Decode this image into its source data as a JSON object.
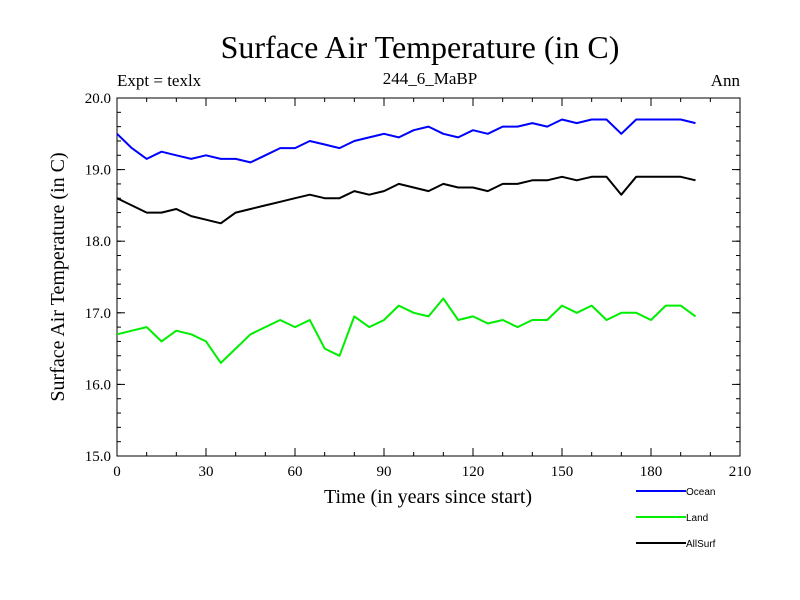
{
  "chart_data": {
    "type": "line",
    "title": "Surface Air Temperature (in C)",
    "subtitle": "244_6_MaBP",
    "top_left_label": "Expt = texlx",
    "top_right_label": "Ann",
    "xlabel": "Time (in years since start)",
    "ylabel": "Surface Air Temperature (in C)",
    "xlim": [
      0,
      210
    ],
    "ylim": [
      15.0,
      20.0
    ],
    "xticks": [
      0,
      30,
      60,
      90,
      120,
      150,
      180,
      210
    ],
    "yticks": [
      15.0,
      16.0,
      17.0,
      18.0,
      19.0,
      20.0
    ],
    "ytick_labels": [
      "15.0",
      "16.0",
      "17.0",
      "18.0",
      "19.0",
      "20.0"
    ],
    "x_start": 0,
    "x_step": 5,
    "legend_position": "bottom-right",
    "series": [
      {
        "name": "Ocean",
        "color": "#0000ff",
        "values": [
          19.5,
          19.3,
          19.15,
          19.25,
          19.2,
          19.15,
          19.2,
          19.15,
          19.15,
          19.1,
          19.2,
          19.3,
          19.3,
          19.4,
          19.35,
          19.3,
          19.4,
          19.45,
          19.5,
          19.45,
          19.55,
          19.6,
          19.5,
          19.45,
          19.55,
          19.5,
          19.6,
          19.6,
          19.65,
          19.6,
          19.7,
          19.65,
          19.7,
          19.7,
          19.5,
          19.7,
          19.7,
          19.7,
          19.7,
          19.65
        ]
      },
      {
        "name": "Land",
        "color": "#00ee00",
        "values": [
          16.7,
          16.75,
          16.8,
          16.6,
          16.75,
          16.7,
          16.6,
          16.3,
          16.5,
          16.7,
          16.8,
          16.9,
          16.8,
          16.9,
          16.5,
          16.4,
          16.95,
          16.8,
          16.9,
          17.1,
          17.0,
          16.95,
          17.2,
          16.9,
          16.95,
          16.85,
          16.9,
          16.8,
          16.9,
          16.9,
          17.1,
          17.0,
          17.1,
          16.9,
          17.0,
          17.0,
          16.9,
          17.1,
          17.1,
          16.95
        ]
      },
      {
        "name": "AllSurf",
        "color": "#000000",
        "values": [
          18.6,
          18.5,
          18.4,
          18.4,
          18.45,
          18.35,
          18.3,
          18.25,
          18.4,
          18.45,
          18.5,
          18.55,
          18.6,
          18.65,
          18.6,
          18.6,
          18.7,
          18.65,
          18.7,
          18.8,
          18.75,
          18.7,
          18.8,
          18.75,
          18.75,
          18.7,
          18.8,
          18.8,
          18.85,
          18.85,
          18.9,
          18.85,
          18.9,
          18.9,
          18.65,
          18.9,
          18.9,
          18.9,
          18.9,
          18.85
        ]
      }
    ]
  }
}
